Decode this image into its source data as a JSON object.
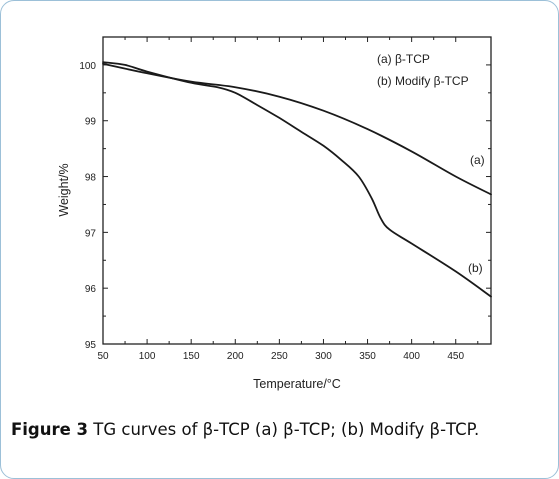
{
  "chart_data": {
    "type": "line",
    "xlabel": "Temperature/°C",
    "ylabel": "Weight/%",
    "xlim": [
      50,
      490
    ],
    "ylim": [
      95,
      100.5
    ],
    "xticks": [
      50,
      100,
      150,
      200,
      250,
      300,
      350,
      400,
      450
    ],
    "yticks": [
      95,
      96,
      97,
      98,
      99,
      100
    ],
    "legend": {
      "placement": "top-right",
      "entries": [
        "(a) β-TCP",
        "(b) Modify β-TCP"
      ]
    },
    "series": [
      {
        "name": "(a)",
        "x": [
          50,
          100,
          150,
          200,
          250,
          300,
          350,
          400,
          450,
          490
        ],
        "y": [
          100.02,
          99.85,
          99.7,
          99.6,
          99.43,
          99.18,
          98.85,
          98.45,
          98.0,
          97.68
        ]
      },
      {
        "name": "(b)",
        "x": [
          50,
          75,
          100,
          150,
          180,
          200,
          225,
          250,
          275,
          300,
          320,
          340,
          355,
          365,
          375,
          400,
          450,
          490
        ],
        "y": [
          100.05,
          100.0,
          99.88,
          99.68,
          99.6,
          99.5,
          99.28,
          99.05,
          98.8,
          98.55,
          98.3,
          98.0,
          97.6,
          97.25,
          97.05,
          96.8,
          96.3,
          95.85
        ]
      }
    ],
    "curve_labels": [
      "(a)",
      "(b)"
    ]
  },
  "caption": {
    "label": "Figure 3",
    "text": " TG curves of β-TCP (a) β-TCP; (b) Modify β-TCP."
  }
}
